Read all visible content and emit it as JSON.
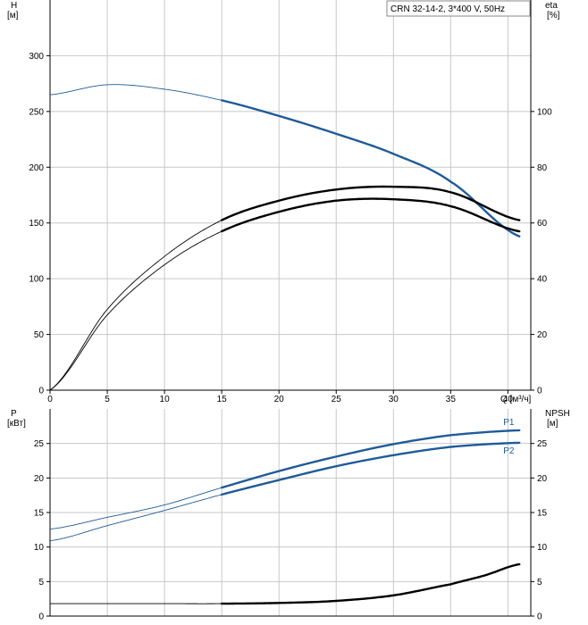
{
  "legend": "CRN 32-14-2, 3*400 V, 50Hz",
  "colors": {
    "blue": "#1f5b99",
    "black": "#000000",
    "grid": "#c8c8c8"
  },
  "chart_data": [
    {
      "type": "line",
      "panel": "top",
      "xlabel": "Q [м³/ч]",
      "ylabel_left": [
        "H",
        "[м]"
      ],
      "ylabel_right": [
        "eta",
        "[%]"
      ],
      "xlim": [
        0,
        42
      ],
      "ylim_left": [
        0,
        350
      ],
      "ylim_right": [
        0,
        140
      ],
      "x_ticks": [
        0,
        5,
        10,
        15,
        20,
        25,
        30,
        35,
        40
      ],
      "y_ticks_left": [
        0,
        50,
        100,
        150,
        200,
        250,
        300
      ],
      "y_ticks_right": [
        0,
        20,
        40,
        60,
        80,
        100
      ],
      "grid": true,
      "series": [
        {
          "axis": "left",
          "color": "#1f5b99",
          "x": [
            0,
            5,
            10,
            15,
            20,
            25,
            30,
            35,
            41
          ],
          "y": [
            265,
            274,
            270,
            260,
            246,
            230,
            212,
            187,
            138
          ]
        },
        {
          "axis": "right",
          "color": "#000000",
          "x": [
            0,
            5,
            10,
            15,
            20,
            25,
            30,
            35,
            41
          ],
          "y": [
            0,
            29,
            48,
            61,
            68,
            72,
            73,
            71,
            61
          ]
        },
        {
          "axis": "right",
          "color": "#000000",
          "x": [
            0,
            5,
            10,
            15,
            20,
            25,
            30,
            35,
            41
          ],
          "y": [
            0,
            27,
            45,
            57,
            64,
            68,
            68.5,
            66,
            57
          ]
        }
      ]
    },
    {
      "type": "line",
      "panel": "bottom",
      "ylabel_left": [
        "P",
        "[кВт]"
      ],
      "ylabel_right": [
        "NPSH",
        "[м]"
      ],
      "xlim": [
        0,
        42
      ],
      "ylim_left": [
        0,
        30
      ],
      "ylim_right": [
        0,
        30
      ],
      "x_ticks": [
        0,
        5,
        10,
        15,
        20,
        25,
        30,
        35,
        40
      ],
      "y_ticks_left": [
        0,
        5,
        10,
        15,
        20,
        25
      ],
      "y_ticks_right": [
        0,
        5,
        10,
        15,
        20,
        25
      ],
      "grid": true,
      "series": [
        {
          "name": "P1",
          "axis": "left",
          "color": "#1f5b99",
          "x": [
            0,
            5,
            10,
            15,
            20,
            25,
            30,
            35,
            41
          ],
          "y": [
            12.6,
            14.3,
            16.1,
            18.6,
            21.0,
            23.1,
            24.9,
            26.2,
            26.9
          ]
        },
        {
          "name": "P2",
          "axis": "left",
          "color": "#1f5b99",
          "x": [
            0,
            5,
            10,
            15,
            20,
            25,
            30,
            35,
            41
          ],
          "y": [
            10.9,
            13.1,
            15.3,
            17.6,
            19.7,
            21.7,
            23.3,
            24.5,
            25.1
          ]
        },
        {
          "axis": "right",
          "color": "#000000",
          "x": [
            0,
            10,
            15,
            20,
            25,
            30,
            35,
            38,
            41
          ],
          "y": [
            1.8,
            1.8,
            1.8,
            1.9,
            2.2,
            3.0,
            4.6,
            5.9,
            7.5
          ]
        }
      ]
    }
  ]
}
